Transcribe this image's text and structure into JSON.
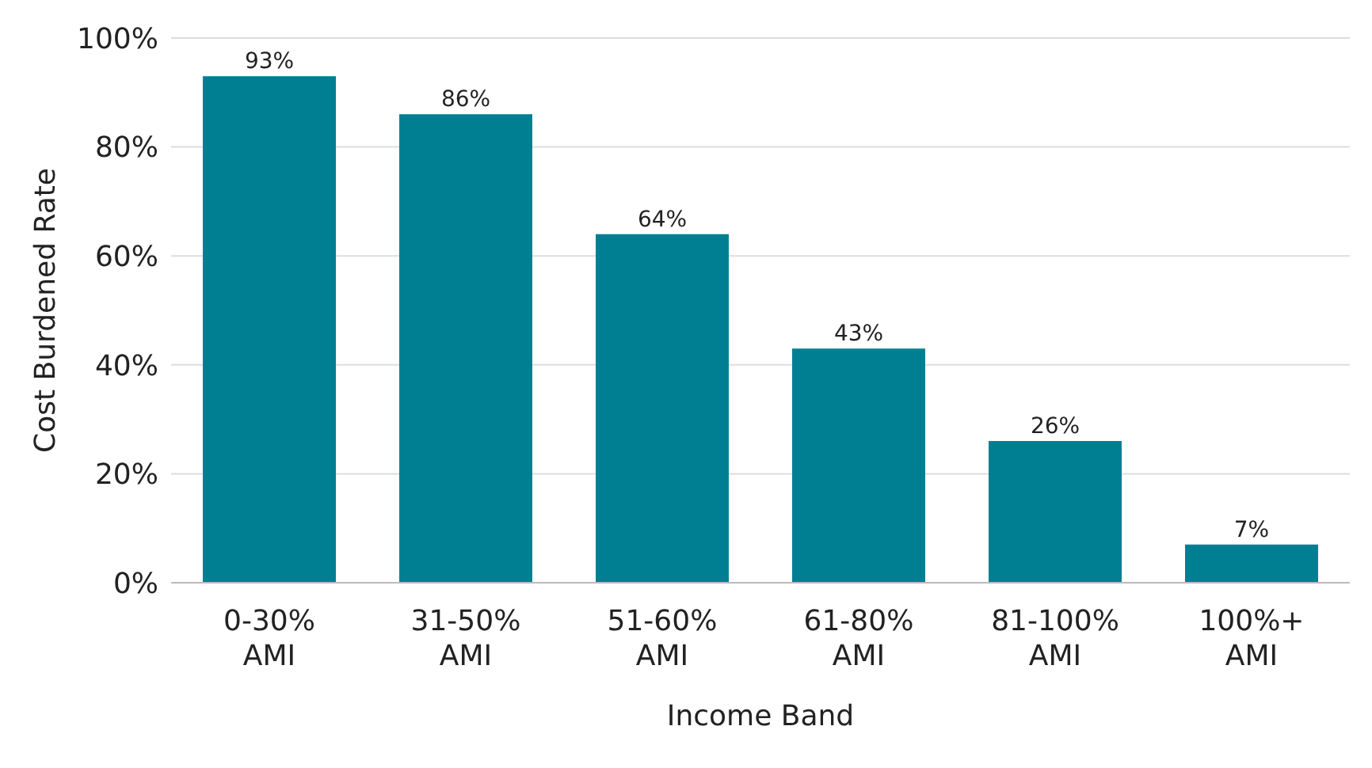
{
  "chart_data": {
    "type": "bar",
    "xlabel": "Income Band",
    "ylabel": "Cost Burdened Rate",
    "categories": [
      "0-30% AMI",
      "31-50% AMI",
      "51-60% AMI",
      "61-80% AMI",
      "81-100% AMI",
      "100%+ AMI"
    ],
    "values": [
      93,
      86,
      64,
      43,
      26,
      7
    ],
    "color": "#007f93",
    "value_labels": [
      "93%",
      "86%",
      "64%",
      "43%",
      "26%",
      "7%"
    ],
    "ylim": [
      0,
      100
    ],
    "yticks": [
      {
        "value": 0,
        "label": "0%"
      },
      {
        "value": 20,
        "label": "20%"
      },
      {
        "value": 40,
        "label": "40%"
      },
      {
        "value": 60,
        "label": "60%"
      },
      {
        "value": 80,
        "label": "80%"
      },
      {
        "value": 100,
        "label": "100%"
      }
    ],
    "grid": "y"
  }
}
